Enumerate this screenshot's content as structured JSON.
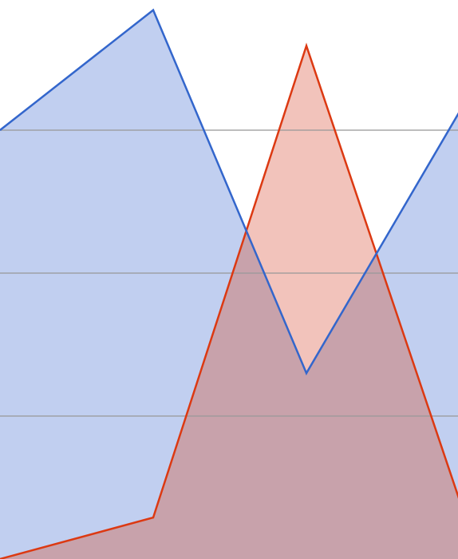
{
  "chart_data": {
    "type": "area",
    "title": "",
    "xlabel": "",
    "ylabel": "",
    "x": [
      0,
      1,
      2,
      3
    ],
    "ylim": [
      0,
      390
    ],
    "gridlines": [
      100,
      200,
      300
    ],
    "grid": true,
    "legend": "none",
    "series": [
      {
        "values": [
          300,
          384,
          130,
          313
        ],
        "color": "#3366cc",
        "fill": "#c1cff0"
      },
      {
        "values": [
          0,
          29,
          359,
          41
        ],
        "color": "#dc3912",
        "fill": "#f2c3bb"
      }
    ],
    "overlap_fill": "#c8a2ab",
    "gridline_color": "#9a9a9a"
  }
}
